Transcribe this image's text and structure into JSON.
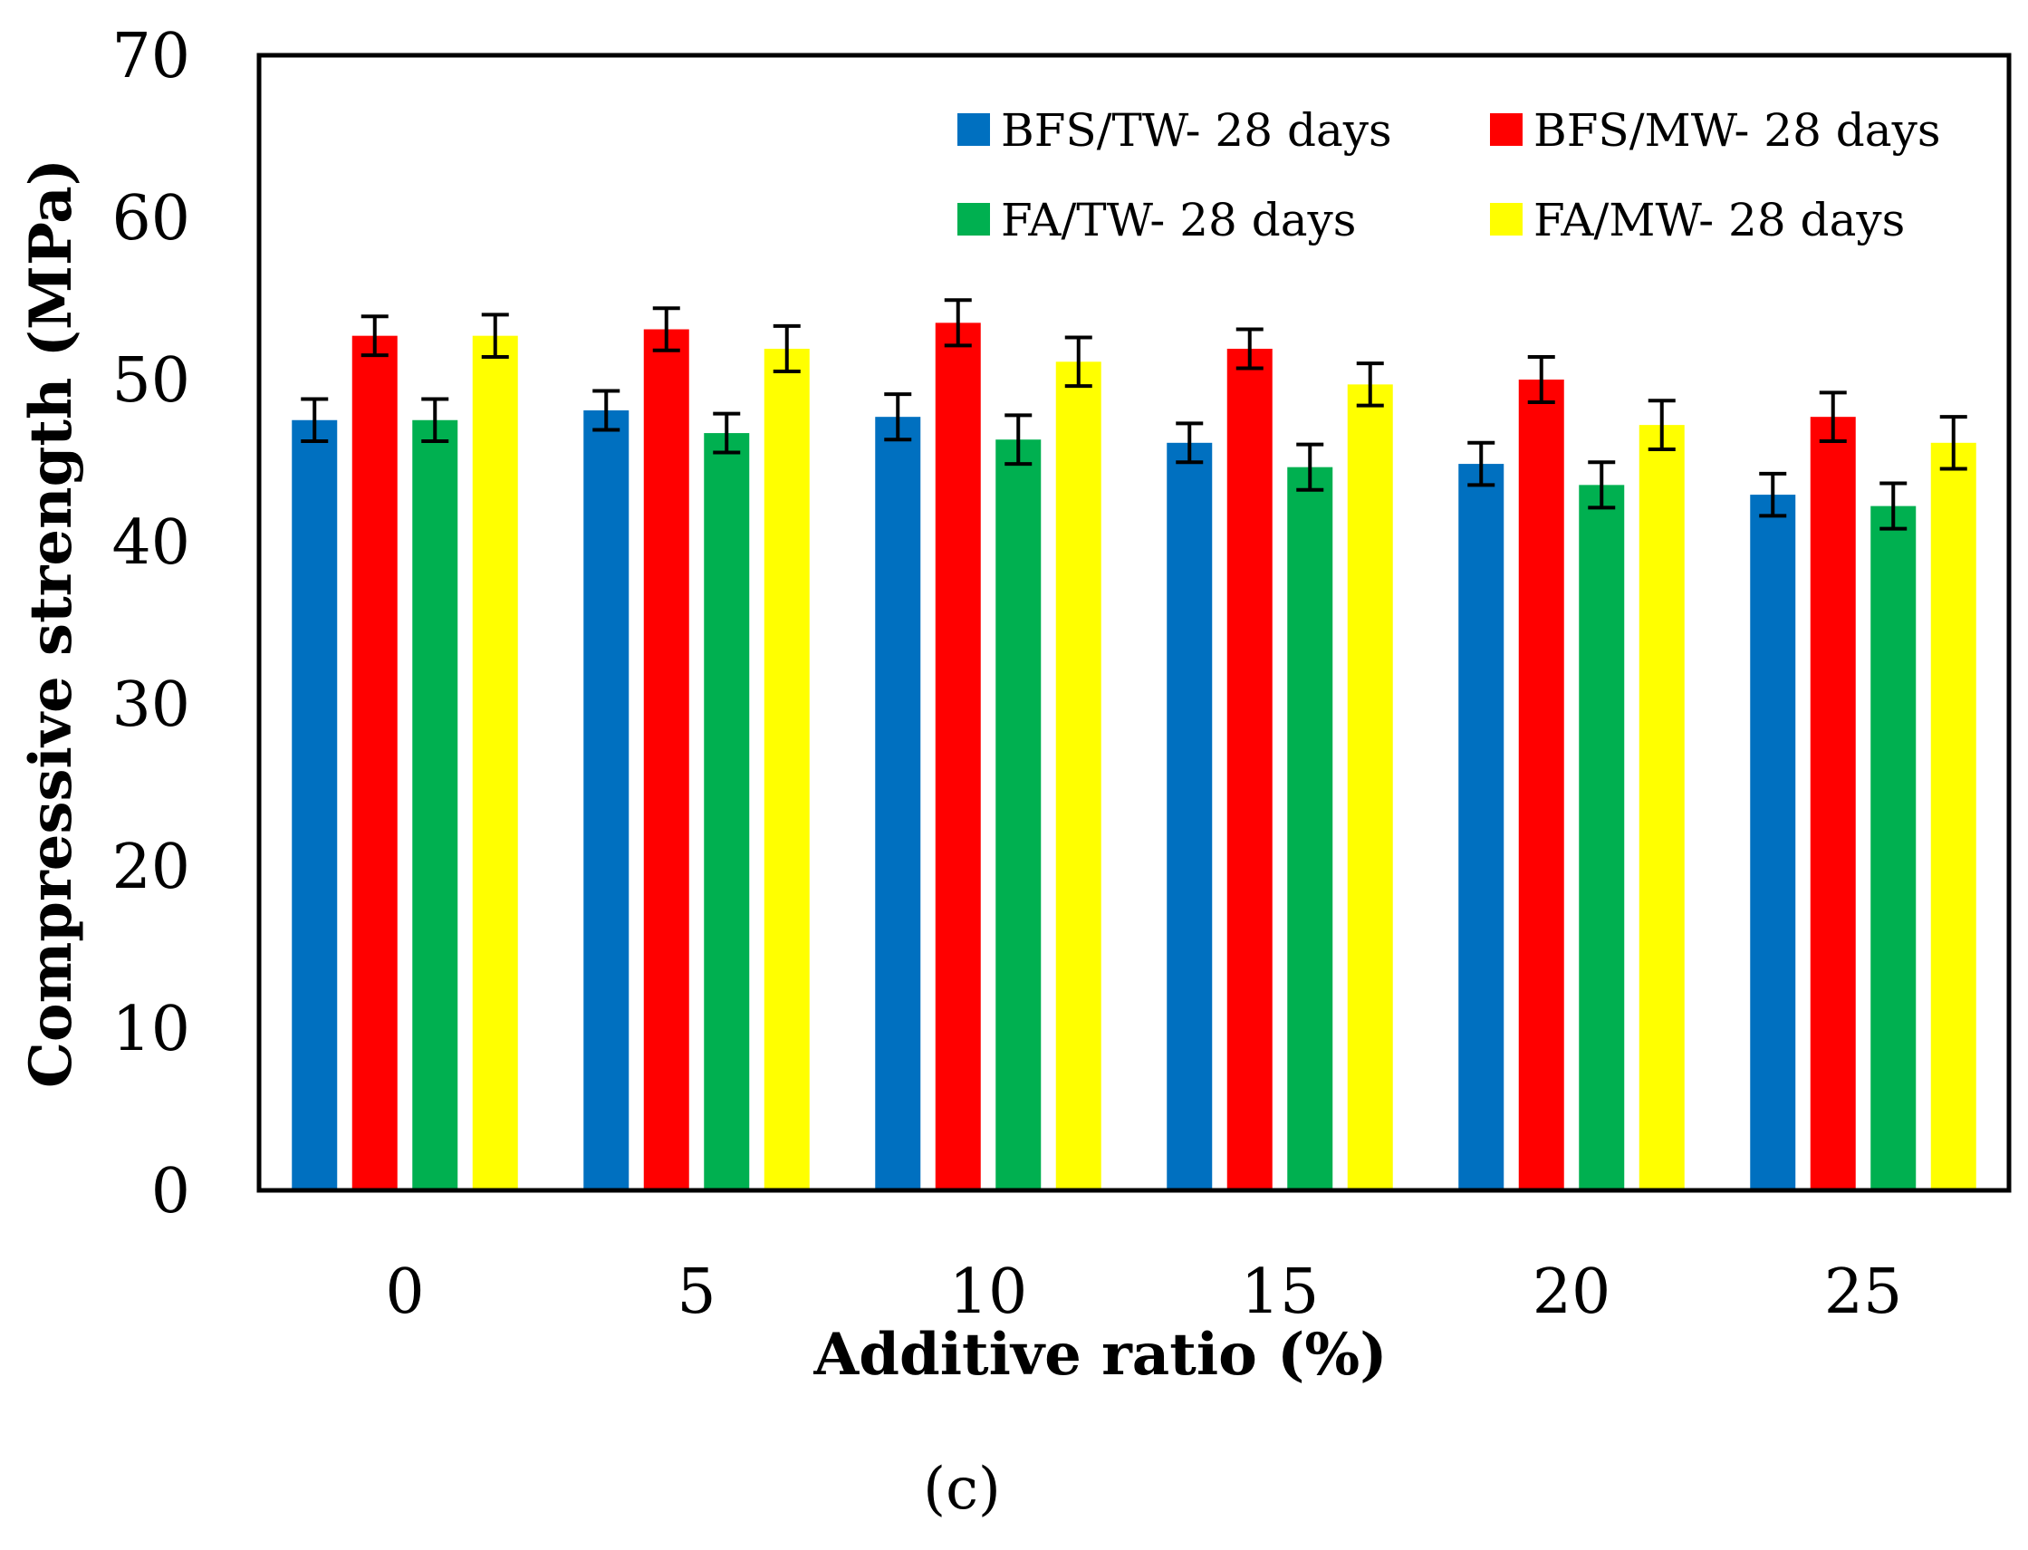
{
  "chart_data": {
    "type": "bar",
    "title": "",
    "xlabel": "Additive ratio (%)",
    "ylabel": "Compressive strength (MPa)",
    "panel_label": "(c)",
    "ylim": [
      0,
      70
    ],
    "yticks": [
      0,
      10,
      20,
      30,
      40,
      50,
      60,
      70
    ],
    "grid": false,
    "legend_position": "top-right",
    "categories": [
      "0",
      "5",
      "10",
      "15",
      "20",
      "25"
    ],
    "series": [
      {
        "name": "BFS/TW- 28 days",
        "color": "#0070c0",
        "values": [
          47.5,
          48.1,
          47.7,
          46.1,
          44.8,
          42.9
        ],
        "errors": [
          1.3,
          1.2,
          1.4,
          1.2,
          1.3,
          1.3
        ]
      },
      {
        "name": "BFS/MW- 28 days",
        "color": "#ff0000",
        "values": [
          52.7,
          53.1,
          53.5,
          51.9,
          50.0,
          47.7
        ],
        "errors": [
          1.2,
          1.3,
          1.4,
          1.2,
          1.4,
          1.5
        ]
      },
      {
        "name": "FA/TW- 28 days",
        "color": "#00b050",
        "values": [
          47.5,
          46.7,
          46.3,
          44.6,
          43.5,
          42.2
        ],
        "errors": [
          1.3,
          1.2,
          1.5,
          1.4,
          1.4,
          1.4
        ]
      },
      {
        "name": "FA/MW- 28 days",
        "color": "#ffff00",
        "values": [
          52.7,
          51.9,
          51.1,
          49.7,
          47.2,
          46.1
        ],
        "errors": [
          1.3,
          1.4,
          1.5,
          1.3,
          1.5,
          1.6
        ]
      }
    ]
  }
}
